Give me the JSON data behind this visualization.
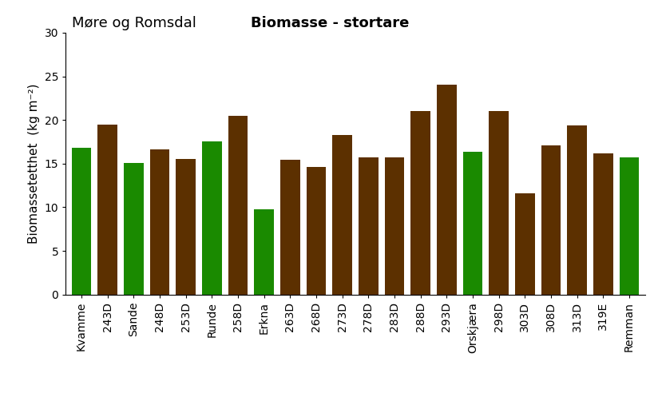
{
  "categories": [
    "Kvamme",
    "243D",
    "Sande",
    "248D",
    "253D",
    "Runde",
    "258D",
    "Erkna",
    "263D",
    "268D",
    "273D",
    "278D",
    "283D",
    "288D",
    "293D",
    "Orskjæra",
    "298D",
    "303D",
    "308D",
    "313D",
    "319E",
    "Remman"
  ],
  "values": [
    16.8,
    19.5,
    15.1,
    16.6,
    15.5,
    17.5,
    20.5,
    9.8,
    15.4,
    14.6,
    18.3,
    15.7,
    15.7,
    21.0,
    24.0,
    16.4,
    21.0,
    11.6,
    17.1,
    19.4,
    16.2,
    15.7
  ],
  "colors": [
    "#1a8a00",
    "#5c3000",
    "#1a8a00",
    "#5c3000",
    "#5c3000",
    "#1a8a00",
    "#5c3000",
    "#1a8a00",
    "#5c3000",
    "#5c3000",
    "#5c3000",
    "#5c3000",
    "#5c3000",
    "#5c3000",
    "#5c3000",
    "#1a8a00",
    "#5c3000",
    "#5c3000",
    "#5c3000",
    "#5c3000",
    "#5c3000",
    "#1a8a00"
  ],
  "title_left": "Møre og Romsdal",
  "title_right": "Biomasse - stortare",
  "ylabel": "Biomassetetthet  (kg m⁻²)",
  "ylim": [
    0,
    30
  ],
  "yticks": [
    0,
    5,
    10,
    15,
    20,
    25,
    30
  ],
  "bar_width": 0.75,
  "background_color": "#ffffff",
  "title_fontsize": 13,
  "axis_fontsize": 11,
  "tick_fontsize": 10
}
